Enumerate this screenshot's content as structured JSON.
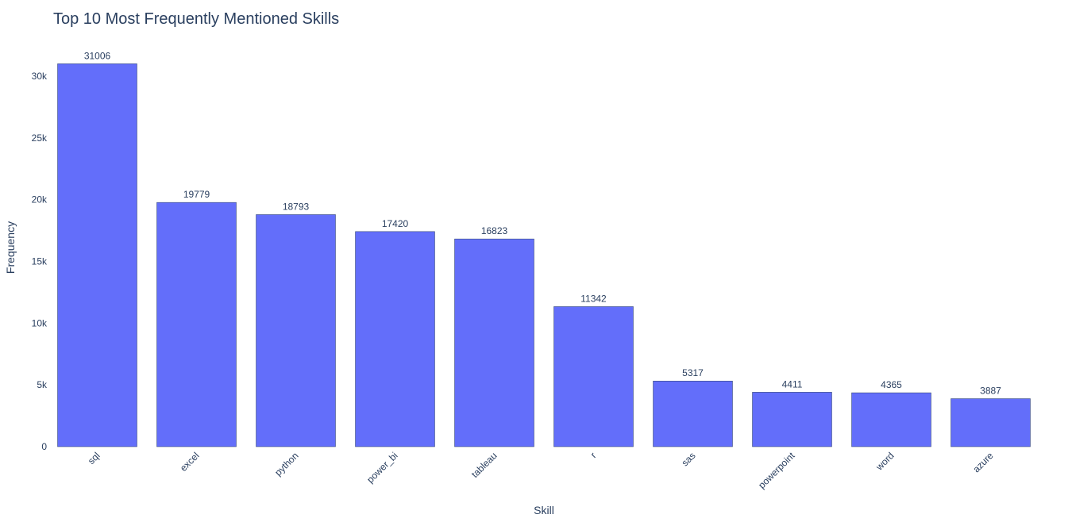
{
  "chart_data": {
    "type": "bar",
    "title": "Top 10 Most Frequently Mentioned Skills",
    "xlabel": "Skill",
    "ylabel": "Frequency",
    "categories": [
      "sql",
      "excel",
      "python",
      "power_bi",
      "tableau",
      "r",
      "sas",
      "powerpoint",
      "word",
      "azure"
    ],
    "values": [
      31006,
      19779,
      18793,
      17420,
      16823,
      11342,
      5317,
      4411,
      4365,
      3887
    ],
    "ylim": [
      0,
      32637
    ],
    "y_ticks": [
      0,
      5000,
      10000,
      15000,
      20000,
      25000,
      30000
    ],
    "y_tick_labels": [
      "0",
      "5k",
      "10k",
      "15k",
      "20k",
      "25k",
      "30k"
    ],
    "grid": false,
    "data_labels": "outside",
    "bar_color": "#636efa",
    "bar_edge_color": "#2a3f5f"
  }
}
